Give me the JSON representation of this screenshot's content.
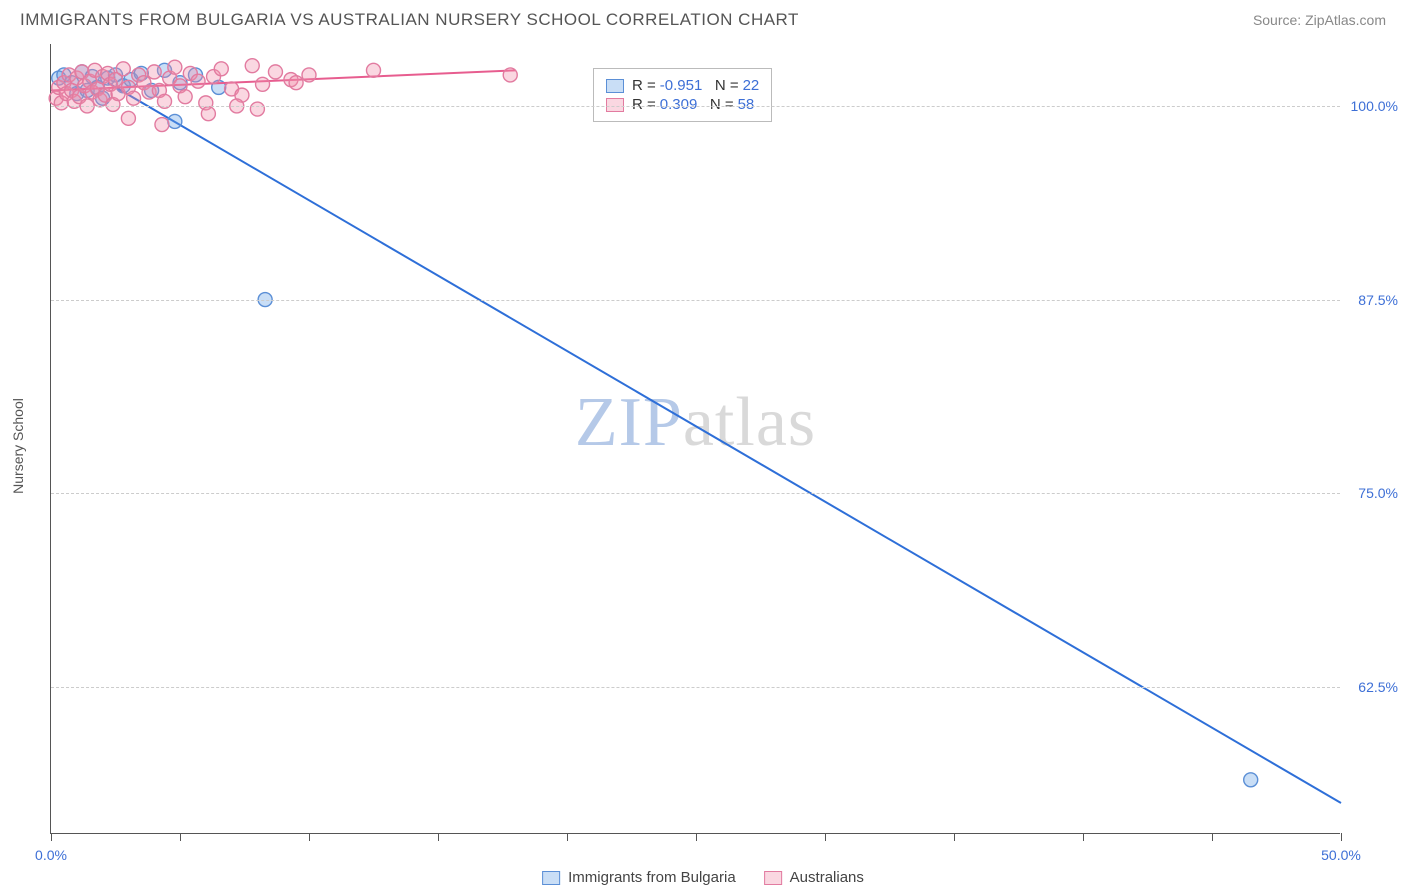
{
  "header": {
    "title": "IMMIGRANTS FROM BULGARIA VS AUSTRALIAN NURSERY SCHOOL CORRELATION CHART",
    "source": "Source: ZipAtlas.com"
  },
  "chart": {
    "type": "scatter",
    "background_color": "#ffffff",
    "grid_color": "#cccccc",
    "axis_color": "#555555",
    "xlim": [
      0,
      50
    ],
    "ylim": [
      53,
      104
    ],
    "x_ticks": [
      0,
      5,
      10,
      15,
      20,
      25,
      30,
      35,
      40,
      45,
      50
    ],
    "x_tick_labels": {
      "0": "0.0%",
      "50": "50.0%"
    },
    "y_ticks": [
      62.5,
      75.0,
      87.5,
      100.0
    ],
    "y_tick_labels": [
      "62.5%",
      "75.0%",
      "87.5%",
      "100.0%"
    ],
    "y_axis_title": "Nursery School",
    "label_fontsize": 14,
    "label_color": "#3d6fd6",
    "watermark": {
      "zip": "ZIP",
      "atlas": "atlas"
    },
    "series": [
      {
        "name": "Immigrants from Bulgaria",
        "marker_fill": "rgba(100,160,230,0.35)",
        "marker_stroke": "#5b8fd6",
        "marker_radius": 7,
        "line_color": "#2e6fd8",
        "line_width": 2,
        "r_value": "-0.951",
        "n_value": "22",
        "regression": {
          "x1": 2.2,
          "y1": 101.5,
          "x2": 50,
          "y2": 55.0
        },
        "points": [
          {
            "x": 0.3,
            "y": 101.8
          },
          {
            "x": 0.5,
            "y": 102.0
          },
          {
            "x": 0.8,
            "y": 101.5
          },
          {
            "x": 1.0,
            "y": 100.8
          },
          {
            "x": 1.2,
            "y": 102.2
          },
          {
            "x": 1.4,
            "y": 101.0
          },
          {
            "x": 1.6,
            "y": 101.9
          },
          {
            "x": 1.8,
            "y": 101.2
          },
          {
            "x": 2.0,
            "y": 100.5
          },
          {
            "x": 2.2,
            "y": 101.8
          },
          {
            "x": 2.5,
            "y": 102.0
          },
          {
            "x": 2.8,
            "y": 101.3
          },
          {
            "x": 3.1,
            "y": 101.7
          },
          {
            "x": 3.5,
            "y": 102.1
          },
          {
            "x": 3.9,
            "y": 101.0
          },
          {
            "x": 4.4,
            "y": 102.3
          },
          {
            "x": 5.0,
            "y": 101.5
          },
          {
            "x": 5.6,
            "y": 102.0
          },
          {
            "x": 6.5,
            "y": 101.2
          },
          {
            "x": 4.8,
            "y": 99.0
          },
          {
            "x": 8.3,
            "y": 87.5
          },
          {
            "x": 46.5,
            "y": 56.5
          }
        ]
      },
      {
        "name": "Australians",
        "marker_fill": "rgba(240,140,170,0.35)",
        "marker_stroke": "#e27ba0",
        "marker_radius": 7,
        "line_color": "#e75d8f",
        "line_width": 2,
        "r_value": "0.309",
        "n_value": "58",
        "regression": {
          "x1": 0.0,
          "y1": 101.0,
          "x2": 18.0,
          "y2": 102.3
        },
        "points": [
          {
            "x": 0.2,
            "y": 100.5
          },
          {
            "x": 0.3,
            "y": 101.2
          },
          {
            "x": 0.4,
            "y": 100.2
          },
          {
            "x": 0.5,
            "y": 101.5
          },
          {
            "x": 0.6,
            "y": 100.8
          },
          {
            "x": 0.7,
            "y": 102.0
          },
          {
            "x": 0.8,
            "y": 101.0
          },
          {
            "x": 0.9,
            "y": 100.3
          },
          {
            "x": 1.0,
            "y": 101.8
          },
          {
            "x": 1.1,
            "y": 100.6
          },
          {
            "x": 1.2,
            "y": 102.2
          },
          {
            "x": 1.3,
            "y": 101.3
          },
          {
            "x": 1.4,
            "y": 100.0
          },
          {
            "x": 1.5,
            "y": 101.6
          },
          {
            "x": 1.6,
            "y": 100.9
          },
          {
            "x": 1.7,
            "y": 102.3
          },
          {
            "x": 1.8,
            "y": 101.1
          },
          {
            "x": 1.9,
            "y": 100.4
          },
          {
            "x": 2.0,
            "y": 101.9
          },
          {
            "x": 2.1,
            "y": 100.7
          },
          {
            "x": 2.2,
            "y": 102.1
          },
          {
            "x": 2.3,
            "y": 101.4
          },
          {
            "x": 2.4,
            "y": 100.1
          },
          {
            "x": 2.5,
            "y": 101.7
          },
          {
            "x": 2.6,
            "y": 100.8
          },
          {
            "x": 2.8,
            "y": 102.4
          },
          {
            "x": 3.0,
            "y": 101.2
          },
          {
            "x": 3.2,
            "y": 100.5
          },
          {
            "x": 3.4,
            "y": 102.0
          },
          {
            "x": 3.6,
            "y": 101.5
          },
          {
            "x": 3.8,
            "y": 100.9
          },
          {
            "x": 4.0,
            "y": 102.2
          },
          {
            "x": 4.2,
            "y": 101.0
          },
          {
            "x": 4.4,
            "y": 100.3
          },
          {
            "x": 4.6,
            "y": 101.8
          },
          {
            "x": 4.8,
            "y": 102.5
          },
          {
            "x": 5.0,
            "y": 101.3
          },
          {
            "x": 5.2,
            "y": 100.6
          },
          {
            "x": 5.4,
            "y": 102.1
          },
          {
            "x": 5.7,
            "y": 101.6
          },
          {
            "x": 6.0,
            "y": 100.2
          },
          {
            "x": 6.3,
            "y": 101.9
          },
          {
            "x": 6.6,
            "y": 102.4
          },
          {
            "x": 7.0,
            "y": 101.1
          },
          {
            "x": 7.4,
            "y": 100.7
          },
          {
            "x": 7.8,
            "y": 102.6
          },
          {
            "x": 8.2,
            "y": 101.4
          },
          {
            "x": 8.7,
            "y": 102.2
          },
          {
            "x": 9.3,
            "y": 101.7
          },
          {
            "x": 10.0,
            "y": 102.0
          },
          {
            "x": 3.0,
            "y": 99.2
          },
          {
            "x": 4.3,
            "y": 98.8
          },
          {
            "x": 6.1,
            "y": 99.5
          },
          {
            "x": 7.2,
            "y": 100.0
          },
          {
            "x": 8.0,
            "y": 99.8
          },
          {
            "x": 9.5,
            "y": 101.5
          },
          {
            "x": 12.5,
            "y": 102.3
          },
          {
            "x": 17.8,
            "y": 102.0
          }
        ]
      }
    ],
    "bottom_legend": [
      {
        "swatch": "blue",
        "label": "Immigrants from Bulgaria"
      },
      {
        "swatch": "pink",
        "label": "Australians"
      }
    ],
    "legend_box": {
      "r_prefix": "R",
      "n_prefix": "N",
      "equals": "="
    }
  }
}
